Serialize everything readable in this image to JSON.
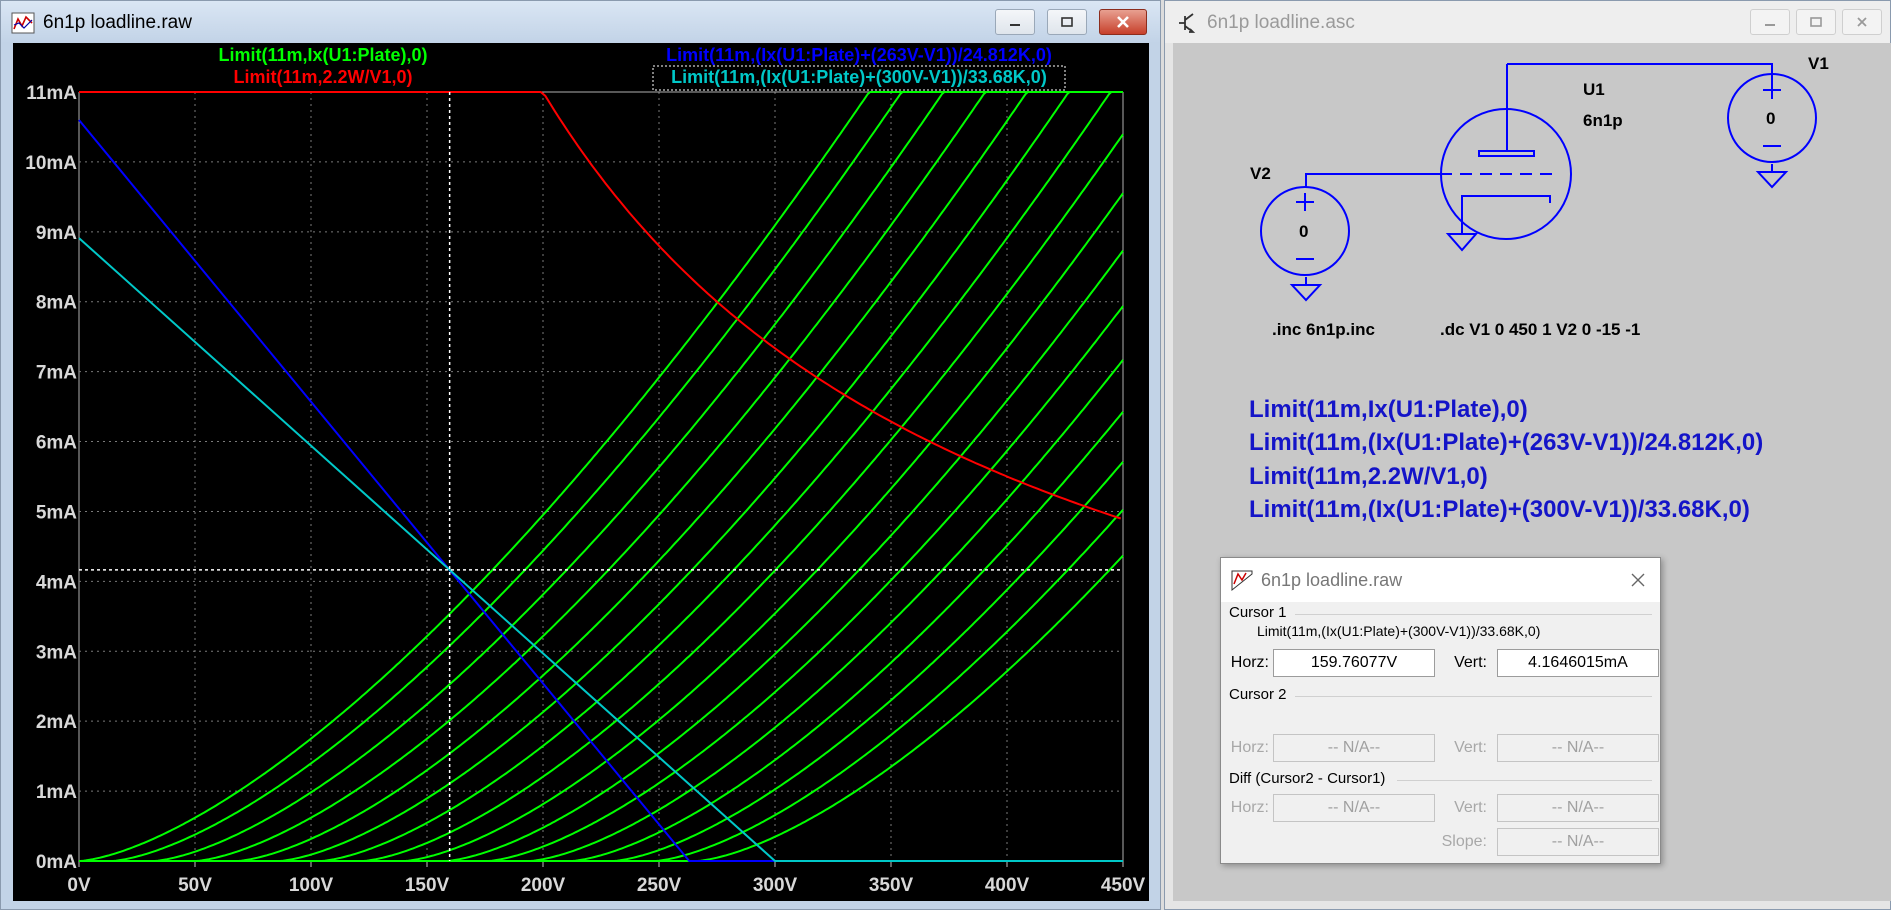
{
  "wave_window": {
    "title": "6n1p loadline.raw",
    "legend": [
      {
        "text": "Limit(11m,Ix(U1:Plate),0)",
        "color": "#00ff00"
      },
      {
        "text": "Limit(11m,2.2W/V1,0)",
        "color": "#ff0000"
      },
      {
        "text": "Limit(11m,(Ix(U1:Plate)+(263V-V1))/24.812K,0)",
        "color": "#0000ff"
      },
      {
        "text": "Limit(11m,(Ix(U1:Plate)+(300V-V1))/33.68K,0)",
        "color": "#00c8c8"
      }
    ]
  },
  "chart_data": {
    "type": "line",
    "xlim": [
      0,
      450
    ],
    "ylim": [
      0,
      11
    ],
    "x_ticks": [
      "0V",
      "50V",
      "100V",
      "150V",
      "200V",
      "250V",
      "300V",
      "350V",
      "400V",
      "450V"
    ],
    "y_ticks": [
      "0mA",
      "1mA",
      "2mA",
      "3mA",
      "4mA",
      "5mA",
      "6mA",
      "7mA",
      "8mA",
      "9mA",
      "10mA",
      "11mA"
    ],
    "grid": true,
    "legend_position": "top",
    "plate_curve_zero_intercepts_V": [
      0,
      14,
      32,
      50,
      68,
      86,
      104,
      122,
      140,
      158,
      176,
      194,
      212,
      230,
      248,
      266
    ],
    "plate_curve_color": "#00ff00",
    "power_limit": {
      "watts": 2.2,
      "limit_mA": 11,
      "color": "#ff0000"
    },
    "loadline_263": {
      "x": [
        0,
        263
      ],
      "y": [
        10.6,
        0
      ],
      "color": "#0000ff"
    },
    "loadline_300": {
      "x": [
        0,
        300
      ],
      "y": [
        8.91,
        0
      ],
      "color": "#00c8c8"
    },
    "cursor": {
      "x": 159.76077,
      "y": 4.1646015
    }
  },
  "schematic_window": {
    "title": "6n1p loadline.asc",
    "u1_name": "U1",
    "u1_model": "6n1p",
    "v1_name": "V1",
    "v1_value": "0",
    "v2_name": "V2",
    "v2_value": "0",
    "inc_directive": ".inc 6n1p.inc",
    "dc_directive": ".dc V1 0 450 1 V2 0 -15 -1",
    "expressions": [
      "Limit(11m,Ix(U1:Plate),0)",
      "Limit(11m,(Ix(U1:Plate)+(263V-V1))/24.812K,0)",
      "Limit(11m,2.2W/V1,0)",
      "Limit(11m,(Ix(U1:Plate)+(300V-V1))/33.68K,0)"
    ],
    "wire_color": "#0000ff",
    "expr_color": "#1414c8"
  },
  "cursor_dialog": {
    "title": "6n1p loadline.raw",
    "cursor1_label": "Cursor 1",
    "cursor1_trace": "Limit(11m,(Ix(U1:Plate)+(300V-V1))/33.68K,0)",
    "horz_label": "Horz:",
    "vert_label": "Vert:",
    "slope_label": "Slope:",
    "cursor1_horz": "159.76077V",
    "cursor1_vert": "4.1646015mA",
    "cursor2_label": "Cursor 2",
    "na_value": "-- N/A--",
    "diff_label": "Diff (Cursor2 - Cursor1)"
  }
}
